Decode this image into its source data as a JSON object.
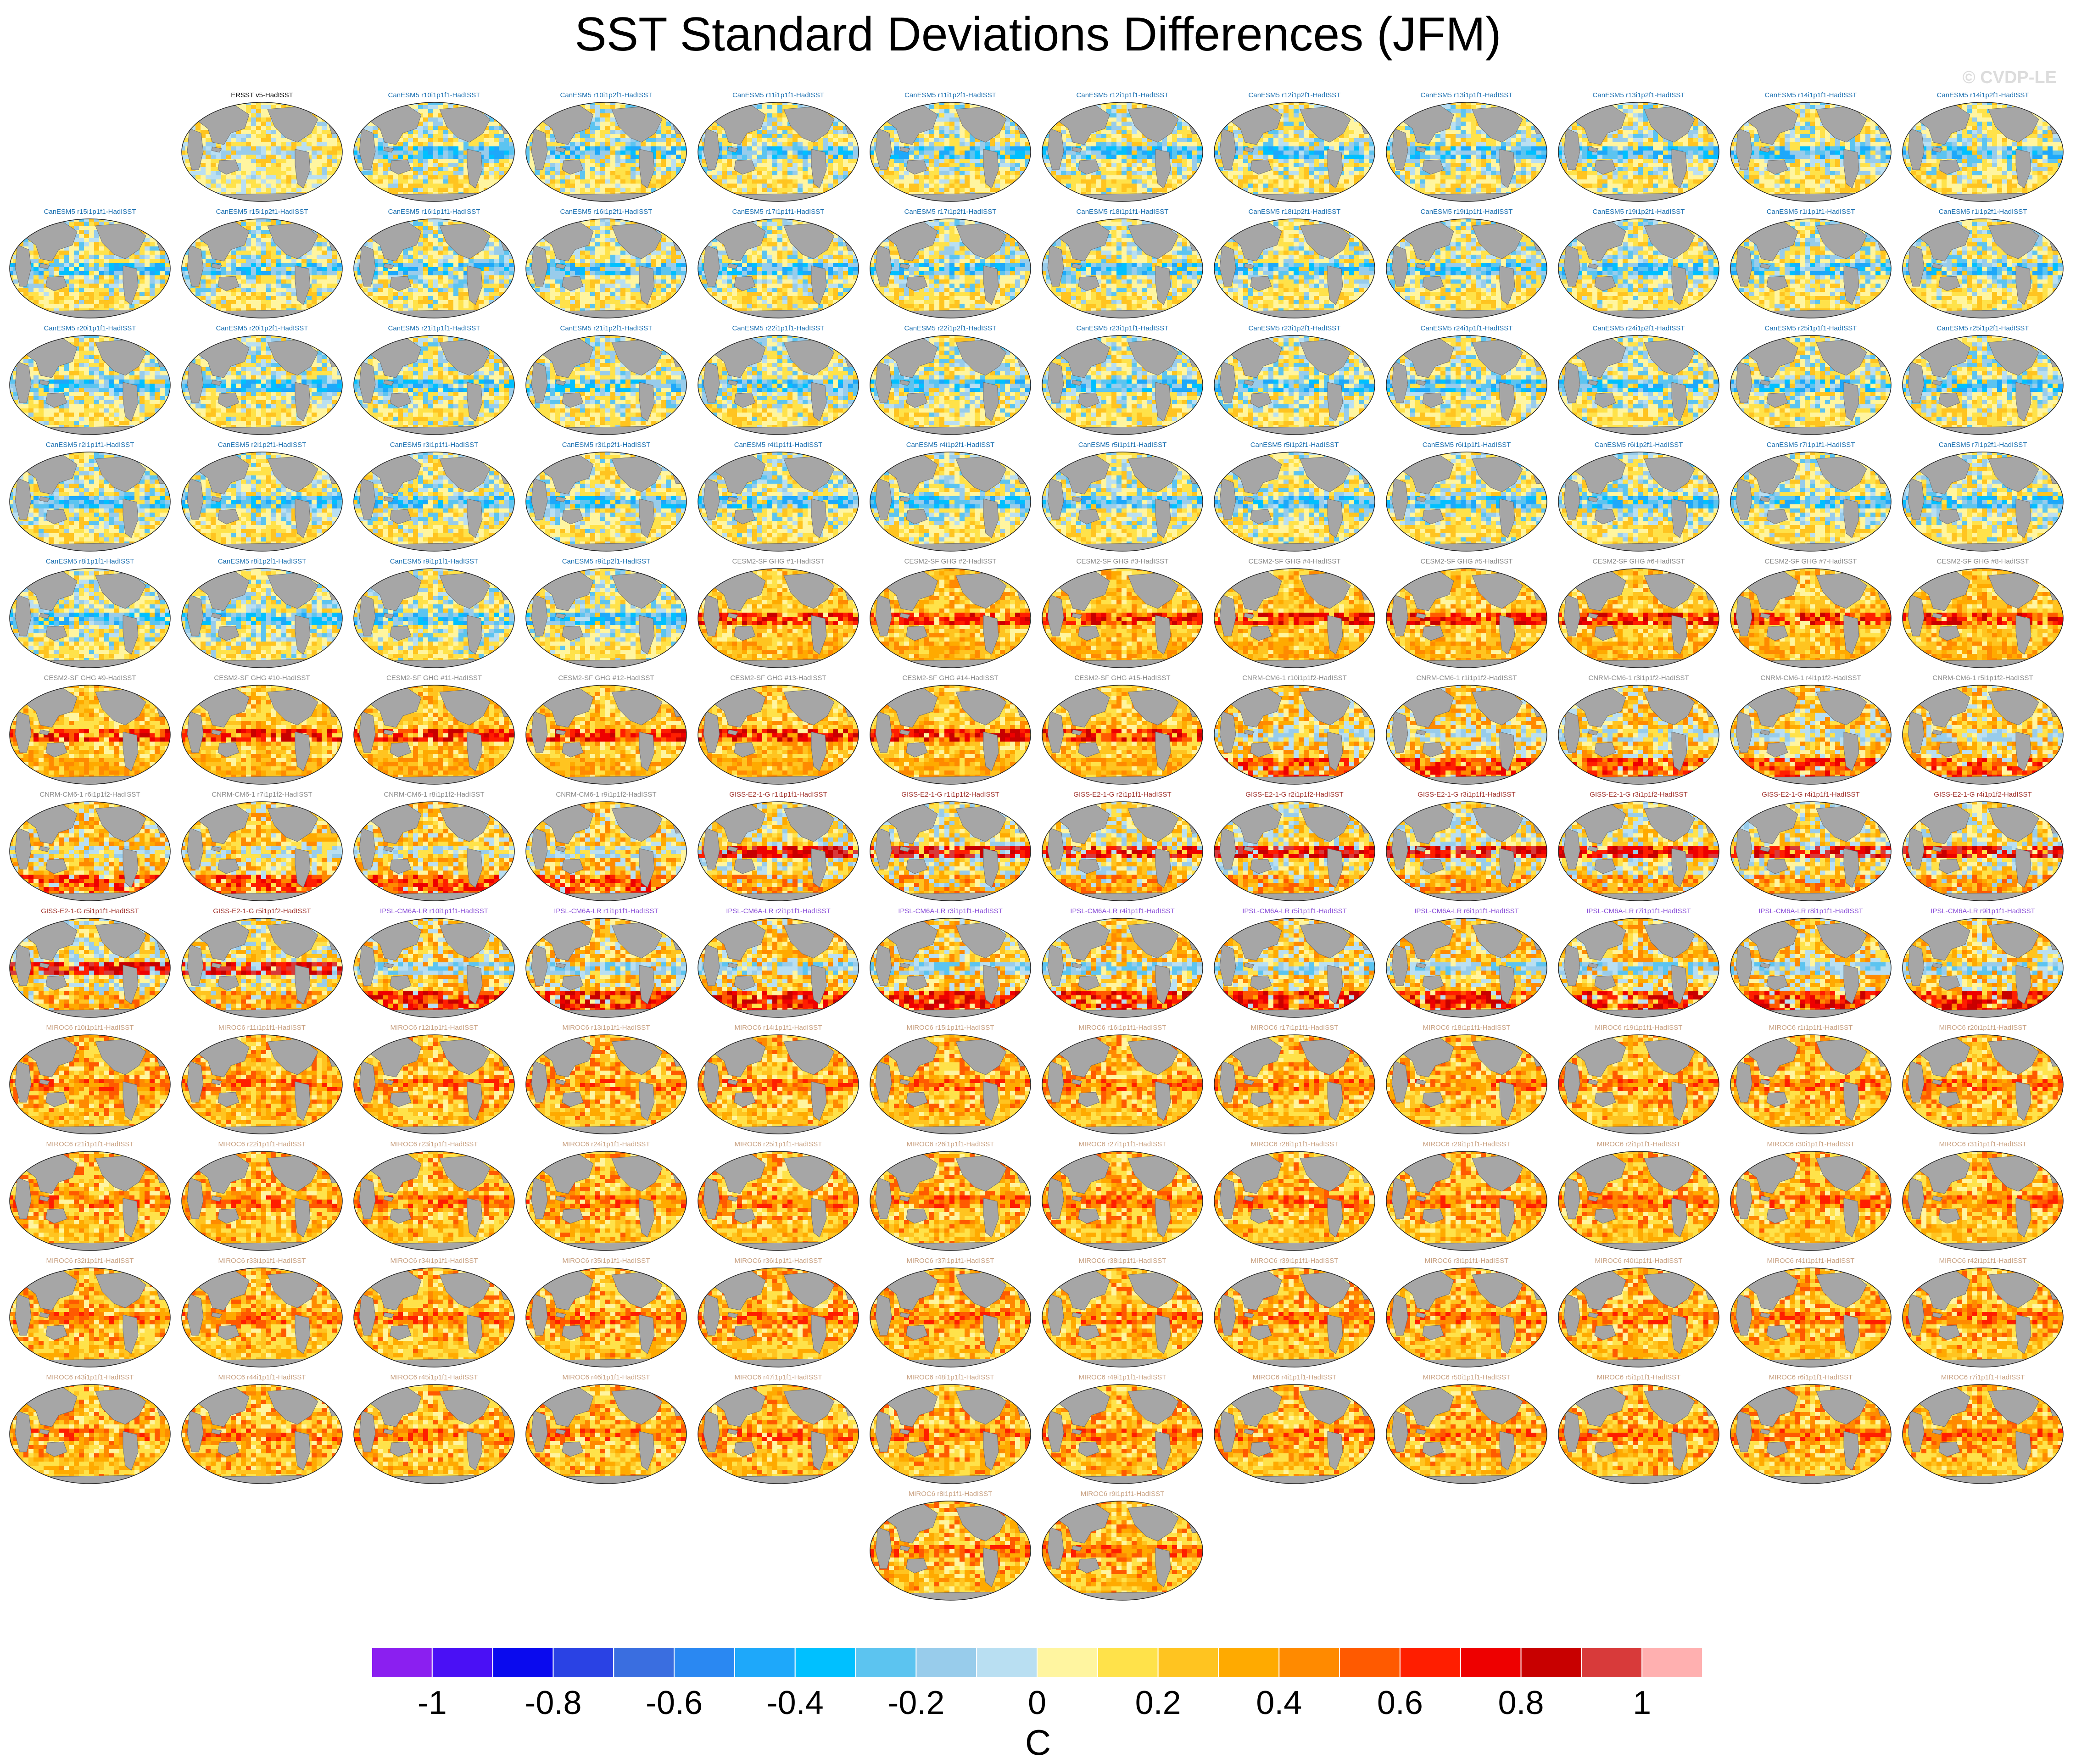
{
  "title": "SST Standard Deviations Differences (JFM)",
  "watermark": "© CVDP-LE",
  "units": "C",
  "colorbar": {
    "colors": [
      "#8b1ff0",
      "#4a10f5",
      "#0a0aee",
      "#2a42e4",
      "#3a6ee0",
      "#2a88f2",
      "#1ea8fa",
      "#00c0ff",
      "#5cc4f0",
      "#98cceb",
      "#b9dff2",
      "#fff5a0",
      "#ffe24a",
      "#ffc420",
      "#ffaa00",
      "#ff8a00",
      "#ff5a00",
      "#ff1e00",
      "#ee0000",
      "#c80000",
      "#d83a3a",
      "#ffb0b0"
    ],
    "tick_labels": [
      "-1",
      "-0.8",
      "-0.6",
      "-0.4",
      "-0.2",
      "0",
      "0.2",
      "0.4",
      "0.6",
      "0.8",
      "1"
    ]
  },
  "panels": [
    {
      "label": "ERSST v5-HadISST",
      "color": "#000000",
      "style": "obs"
    },
    {
      "label": "CanESM5 r10i1p1f1-HadISST",
      "color": "#1a6fb0",
      "style": "can"
    },
    {
      "label": "CanESM5 r10i1p2f1-HadISST",
      "color": "#1a6fb0",
      "style": "can"
    },
    {
      "label": "CanESM5 r11i1p1f1-HadISST",
      "color": "#1a6fb0",
      "style": "can"
    },
    {
      "label": "CanESM5 r11i1p2f1-HadISST",
      "color": "#1a6fb0",
      "style": "can"
    },
    {
      "label": "CanESM5 r12i1p1f1-HadISST",
      "color": "#1a6fb0",
      "style": "can"
    },
    {
      "label": "CanESM5 r12i1p2f1-HadISST",
      "color": "#1a6fb0",
      "style": "can"
    },
    {
      "label": "CanESM5 r13i1p1f1-HadISST",
      "color": "#1a6fb0",
      "style": "can"
    },
    {
      "label": "CanESM5 r13i1p2f1-HadISST",
      "color": "#1a6fb0",
      "style": "can"
    },
    {
      "label": "CanESM5 r14i1p1f1-HadISST",
      "color": "#1a6fb0",
      "style": "can"
    },
    {
      "label": "CanESM5 r14i1p2f1-HadISST",
      "color": "#1a6fb0",
      "style": "can"
    },
    {
      "label": "CanESM5 r15i1p1f1-HadISST",
      "color": "#1a6fb0",
      "style": "can"
    },
    {
      "label": "CanESM5 r15i1p2f1-HadISST",
      "color": "#1a6fb0",
      "style": "can"
    },
    {
      "label": "CanESM5 r16i1p1f1-HadISST",
      "color": "#1a6fb0",
      "style": "can"
    },
    {
      "label": "CanESM5 r16i1p2f1-HadISST",
      "color": "#1a6fb0",
      "style": "can"
    },
    {
      "label": "CanESM5 r17i1p1f1-HadISST",
      "color": "#1a6fb0",
      "style": "can"
    },
    {
      "label": "CanESM5 r17i1p2f1-HadISST",
      "color": "#1a6fb0",
      "style": "can"
    },
    {
      "label": "CanESM5 r18i1p1f1-HadISST",
      "color": "#1a6fb0",
      "style": "can"
    },
    {
      "label": "CanESM5 r18i1p2f1-HadISST",
      "color": "#1a6fb0",
      "style": "can"
    },
    {
      "label": "CanESM5 r19i1p1f1-HadISST",
      "color": "#1a6fb0",
      "style": "can"
    },
    {
      "label": "CanESM5 r19i1p2f1-HadISST",
      "color": "#1a6fb0",
      "style": "can"
    },
    {
      "label": "CanESM5 r1i1p1f1-HadISST",
      "color": "#1a6fb0",
      "style": "can"
    },
    {
      "label": "CanESM5 r1i1p2f1-HadISST",
      "color": "#1a6fb0",
      "style": "can"
    },
    {
      "label": "CanESM5 r20i1p1f1-HadISST",
      "color": "#1a6fb0",
      "style": "can"
    },
    {
      "label": "CanESM5 r20i1p2f1-HadISST",
      "color": "#1a6fb0",
      "style": "can"
    },
    {
      "label": "CanESM5 r21i1p1f1-HadISST",
      "color": "#1a6fb0",
      "style": "can"
    },
    {
      "label": "CanESM5 r21i1p2f1-HadISST",
      "color": "#1a6fb0",
      "style": "can"
    },
    {
      "label": "CanESM5 r22i1p1f1-HadISST",
      "color": "#1a6fb0",
      "style": "can"
    },
    {
      "label": "CanESM5 r22i1p2f1-HadISST",
      "color": "#1a6fb0",
      "style": "can"
    },
    {
      "label": "CanESM5 r23i1p1f1-HadISST",
      "color": "#1a6fb0",
      "style": "can"
    },
    {
      "label": "CanESM5 r23i1p2f1-HadISST",
      "color": "#1a6fb0",
      "style": "can"
    },
    {
      "label": "CanESM5 r24i1p1f1-HadISST",
      "color": "#1a6fb0",
      "style": "can"
    },
    {
      "label": "CanESM5 r24i1p2f1-HadISST",
      "color": "#1a6fb0",
      "style": "can"
    },
    {
      "label": "CanESM5 r25i1p1f1-HadISST",
      "color": "#1a6fb0",
      "style": "can"
    },
    {
      "label": "CanESM5 r25i1p2f1-HadISST",
      "color": "#1a6fb0",
      "style": "can"
    },
    {
      "label": "CanESM5 r2i1p1f1-HadISST",
      "color": "#1a6fb0",
      "style": "can"
    },
    {
      "label": "CanESM5 r2i1p2f1-HadISST",
      "color": "#1a6fb0",
      "style": "can"
    },
    {
      "label": "CanESM5 r3i1p1f1-HadISST",
      "color": "#1a6fb0",
      "style": "can"
    },
    {
      "label": "CanESM5 r3i1p2f1-HadISST",
      "color": "#1a6fb0",
      "style": "can"
    },
    {
      "label": "CanESM5 r4i1p1f1-HadISST",
      "color": "#1a6fb0",
      "style": "can"
    },
    {
      "label": "CanESM5 r4i1p2f1-HadISST",
      "color": "#1a6fb0",
      "style": "can"
    },
    {
      "label": "CanESM5 r5i1p1f1-HadISST",
      "color": "#1a6fb0",
      "style": "can"
    },
    {
      "label": "CanESM5 r5i1p2f1-HadISST",
      "color": "#1a6fb0",
      "style": "can"
    },
    {
      "label": "CanESM5 r6i1p1f1-HadISST",
      "color": "#1a6fb0",
      "style": "can"
    },
    {
      "label": "CanESM5 r6i1p2f1-HadISST",
      "color": "#1a6fb0",
      "style": "can"
    },
    {
      "label": "CanESM5 r7i1p1f1-HadISST",
      "color": "#1a6fb0",
      "style": "can"
    },
    {
      "label": "CanESM5 r7i1p2f1-HadISST",
      "color": "#1a6fb0",
      "style": "can"
    },
    {
      "label": "CanESM5 r8i1p1f1-HadISST",
      "color": "#1a6fb0",
      "style": "can"
    },
    {
      "label": "CanESM5 r8i1p2f1-HadISST",
      "color": "#1a6fb0",
      "style": "can"
    },
    {
      "label": "CanESM5 r9i1p1f1-HadISST",
      "color": "#1a6fb0",
      "style": "can"
    },
    {
      "label": "CanESM5 r9i1p2f1-HadISST",
      "color": "#1a6fb0",
      "style": "can"
    },
    {
      "label": "CESM2-SF GHG #1-HadISST",
      "color": "#8a8a8a",
      "style": "cesm"
    },
    {
      "label": "CESM2-SF GHG #2-HadISST",
      "color": "#8a8a8a",
      "style": "cesm"
    },
    {
      "label": "CESM2-SF GHG #3-HadISST",
      "color": "#8a8a8a",
      "style": "cesm"
    },
    {
      "label": "CESM2-SF GHG #4-HadISST",
      "color": "#8a8a8a",
      "style": "cesm"
    },
    {
      "label": "CESM2-SF GHG #5-HadISST",
      "color": "#8a8a8a",
      "style": "cesm"
    },
    {
      "label": "CESM2-SF GHG #6-HadISST",
      "color": "#8a8a8a",
      "style": "cesm"
    },
    {
      "label": "CESM2-SF GHG #7-HadISST",
      "color": "#8a8a8a",
      "style": "cesm"
    },
    {
      "label": "CESM2-SF GHG #8-HadISST",
      "color": "#8a8a8a",
      "style": "cesm"
    },
    {
      "label": "CESM2-SF GHG #9-HadISST",
      "color": "#8a8a8a",
      "style": "cesm"
    },
    {
      "label": "CESM2-SF GHG #10-HadISST",
      "color": "#8a8a8a",
      "style": "cesm"
    },
    {
      "label": "CESM2-SF GHG #11-HadISST",
      "color": "#8a8a8a",
      "style": "cesm"
    },
    {
      "label": "CESM2-SF GHG #12-HadISST",
      "color": "#8a8a8a",
      "style": "cesm"
    },
    {
      "label": "CESM2-SF GHG #13-HadISST",
      "color": "#8a8a8a",
      "style": "cesm"
    },
    {
      "label": "CESM2-SF GHG #14-HadISST",
      "color": "#8a8a8a",
      "style": "cesm"
    },
    {
      "label": "CESM2-SF GHG #15-HadISST",
      "color": "#8a8a8a",
      "style": "cesm"
    },
    {
      "label": "CNRM-CM6-1 r10i1p1f2-HadISST",
      "color": "#8a8a8a",
      "style": "cnrm"
    },
    {
      "label": "CNRM-CM6-1 r1i1p1f2-HadISST",
      "color": "#8a8a8a",
      "style": "cnrm"
    },
    {
      "label": "CNRM-CM6-1 r3i1p1f2-HadISST",
      "color": "#8a8a8a",
      "style": "cnrm"
    },
    {
      "label": "CNRM-CM6-1 r4i1p1f2-HadISST",
      "color": "#8a8a8a",
      "style": "cnrm"
    },
    {
      "label": "CNRM-CM6-1 r5i1p1f2-HadISST",
      "color": "#8a8a8a",
      "style": "cnrm"
    },
    {
      "label": "CNRM-CM6-1 r6i1p1f2-HadISST",
      "color": "#8a8a8a",
      "style": "cnrm"
    },
    {
      "label": "CNRM-CM6-1 r7i1p1f2-HadISST",
      "color": "#8a8a8a",
      "style": "cnrm"
    },
    {
      "label": "CNRM-CM6-1 r8i1p1f2-HadISST",
      "color": "#8a8a8a",
      "style": "cnrm"
    },
    {
      "label": "CNRM-CM6-1 r9i1p1f2-HadISST",
      "color": "#8a8a8a",
      "style": "cnrm"
    },
    {
      "label": "GISS-E2-1-G r1i1p1f1-HadISST",
      "color": "#a0322c",
      "style": "giss"
    },
    {
      "label": "GISS-E2-1-G r1i1p1f2-HadISST",
      "color": "#a0322c",
      "style": "giss"
    },
    {
      "label": "GISS-E2-1-G r2i1p1f1-HadISST",
      "color": "#a0322c",
      "style": "giss"
    },
    {
      "label": "GISS-E2-1-G r2i1p1f2-HadISST",
      "color": "#a0322c",
      "style": "giss"
    },
    {
      "label": "GISS-E2-1-G r3i1p1f1-HadISST",
      "color": "#a0322c",
      "style": "giss"
    },
    {
      "label": "GISS-E2-1-G r3i1p1f2-HadISST",
      "color": "#a0322c",
      "style": "giss"
    },
    {
      "label": "GISS-E2-1-G r4i1p1f1-HadISST",
      "color": "#a0322c",
      "style": "giss"
    },
    {
      "label": "GISS-E2-1-G r4i1p1f2-HadISST",
      "color": "#a0322c",
      "style": "giss"
    },
    {
      "label": "GISS-E2-1-G r5i1p1f1-HadISST",
      "color": "#a0322c",
      "style": "giss"
    },
    {
      "label": "GISS-E2-1-G r5i1p1f2-HadISST",
      "color": "#a0322c",
      "style": "giss"
    },
    {
      "label": "IPSL-CM6A-LR r10i1p1f1-HadISST",
      "color": "#8a4fd8",
      "style": "ipsl"
    },
    {
      "label": "IPSL-CM6A-LR r1i1p1f1-HadISST",
      "color": "#8a4fd8",
      "style": "ipsl"
    },
    {
      "label": "IPSL-CM6A-LR r2i1p1f1-HadISST",
      "color": "#8a4fd8",
      "style": "ipsl"
    },
    {
      "label": "IPSL-CM6A-LR r3i1p1f1-HadISST",
      "color": "#8a4fd8",
      "style": "ipsl"
    },
    {
      "label": "IPSL-CM6A-LR r4i1p1f1-HadISST",
      "color": "#8a4fd8",
      "style": "ipsl"
    },
    {
      "label": "IPSL-CM6A-LR r5i1p1f1-HadISST",
      "color": "#8a4fd8",
      "style": "ipsl"
    },
    {
      "label": "IPSL-CM6A-LR r6i1p1f1-HadISST",
      "color": "#8a4fd8",
      "style": "ipsl"
    },
    {
      "label": "IPSL-CM6A-LR r7i1p1f1-HadISST",
      "color": "#8a4fd8",
      "style": "ipsl"
    },
    {
      "label": "IPSL-CM6A-LR r8i1p1f1-HadISST",
      "color": "#8a4fd8",
      "style": "ipsl"
    },
    {
      "label": "IPSL-CM6A-LR r9i1p1f1-HadISST",
      "color": "#8a4fd8",
      "style": "ipsl"
    },
    {
      "label": "MIROC6 r10i1p1f1-HadISST",
      "color": "#c8a080",
      "style": "miroc"
    },
    {
      "label": "MIROC6 r11i1p1f1-HadISST",
      "color": "#c8a080",
      "style": "miroc"
    },
    {
      "label": "MIROC6 r12i1p1f1-HadISST",
      "color": "#c8a080",
      "style": "miroc"
    },
    {
      "label": "MIROC6 r13i1p1f1-HadISST",
      "color": "#c8a080",
      "style": "miroc"
    },
    {
      "label": "MIROC6 r14i1p1f1-HadISST",
      "color": "#c8a080",
      "style": "miroc"
    },
    {
      "label": "MIROC6 r15i1p1f1-HadISST",
      "color": "#c8a080",
      "style": "miroc"
    },
    {
      "label": "MIROC6 r16i1p1f1-HadISST",
      "color": "#c8a080",
      "style": "miroc"
    },
    {
      "label": "MIROC6 r17i1p1f1-HadISST",
      "color": "#c8a080",
      "style": "miroc"
    },
    {
      "label": "MIROC6 r18i1p1f1-HadISST",
      "color": "#c8a080",
      "style": "miroc"
    },
    {
      "label": "MIROC6 r19i1p1f1-HadISST",
      "color": "#c8a080",
      "style": "miroc"
    },
    {
      "label": "MIROC6 r1i1p1f1-HadISST",
      "color": "#c8a080",
      "style": "miroc"
    },
    {
      "label": "MIROC6 r20i1p1f1-HadISST",
      "color": "#c8a080",
      "style": "miroc"
    },
    {
      "label": "MIROC6 r21i1p1f1-HadISST",
      "color": "#c8a080",
      "style": "miroc"
    },
    {
      "label": "MIROC6 r22i1p1f1-HadISST",
      "color": "#c8a080",
      "style": "miroc"
    },
    {
      "label": "MIROC6 r23i1p1f1-HadISST",
      "color": "#c8a080",
      "style": "miroc"
    },
    {
      "label": "MIROC6 r24i1p1f1-HadISST",
      "color": "#c8a080",
      "style": "miroc"
    },
    {
      "label": "MIROC6 r25i1p1f1-HadISST",
      "color": "#c8a080",
      "style": "miroc"
    },
    {
      "label": "MIROC6 r26i1p1f1-HadISST",
      "color": "#c8a080",
      "style": "miroc"
    },
    {
      "label": "MIROC6 r27i1p1f1-HadISST",
      "color": "#c8a080",
      "style": "miroc"
    },
    {
      "label": "MIROC6 r28i1p1f1-HadISST",
      "color": "#c8a080",
      "style": "miroc"
    },
    {
      "label": "MIROC6 r29i1p1f1-HadISST",
      "color": "#c8a080",
      "style": "miroc"
    },
    {
      "label": "MIROC6 r2i1p1f1-HadISST",
      "color": "#c8a080",
      "style": "miroc"
    },
    {
      "label": "MIROC6 r30i1p1f1-HadISST",
      "color": "#c8a080",
      "style": "miroc"
    },
    {
      "label": "MIROC6 r31i1p1f1-HadISST",
      "color": "#c8a080",
      "style": "miroc"
    },
    {
      "label": "MIROC6 r32i1p1f1-HadISST",
      "color": "#c8a080",
      "style": "miroc"
    },
    {
      "label": "MIROC6 r33i1p1f1-HadISST",
      "color": "#c8a080",
      "style": "miroc"
    },
    {
      "label": "MIROC6 r34i1p1f1-HadISST",
      "color": "#c8a080",
      "style": "miroc"
    },
    {
      "label": "MIROC6 r35i1p1f1-HadISST",
      "color": "#c8a080",
      "style": "miroc"
    },
    {
      "label": "MIROC6 r36i1p1f1-HadISST",
      "color": "#c8a080",
      "style": "miroc"
    },
    {
      "label": "MIROC6 r37i1p1f1-HadISST",
      "color": "#c8a080",
      "style": "miroc"
    },
    {
      "label": "MIROC6 r38i1p1f1-HadISST",
      "color": "#c8a080",
      "style": "miroc"
    },
    {
      "label": "MIROC6 r39i1p1f1-HadISST",
      "color": "#c8a080",
      "style": "miroc"
    },
    {
      "label": "MIROC6 r3i1p1f1-HadISST",
      "color": "#c8a080",
      "style": "miroc"
    },
    {
      "label": "MIROC6 r40i1p1f1-HadISST",
      "color": "#c8a080",
      "style": "miroc"
    },
    {
      "label": "MIROC6 r41i1p1f1-HadISST",
      "color": "#c8a080",
      "style": "miroc"
    },
    {
      "label": "MIROC6 r42i1p1f1-HadISST",
      "color": "#c8a080",
      "style": "miroc"
    },
    {
      "label": "MIROC6 r43i1p1f1-HadISST",
      "color": "#c8a080",
      "style": "miroc"
    },
    {
      "label": "MIROC6 r44i1p1f1-HadISST",
      "color": "#c8a080",
      "style": "miroc"
    },
    {
      "label": "MIROC6 r45i1p1f1-HadISST",
      "color": "#c8a080",
      "style": "miroc"
    },
    {
      "label": "MIROC6 r46i1p1f1-HadISST",
      "color": "#c8a080",
      "style": "miroc"
    },
    {
      "label": "MIROC6 r47i1p1f1-HadISST",
      "color": "#c8a080",
      "style": "miroc"
    },
    {
      "label": "MIROC6 r48i1p1f1-HadISST",
      "color": "#c8a080",
      "style": "miroc"
    },
    {
      "label": "MIROC6 r49i1p1f1-HadISST",
      "color": "#c8a080",
      "style": "miroc"
    },
    {
      "label": "MIROC6 r4i1p1f1-HadISST",
      "color": "#c8a080",
      "style": "miroc"
    },
    {
      "label": "MIROC6 r50i1p1f1-HadISST",
      "color": "#c8a080",
      "style": "miroc"
    },
    {
      "label": "MIROC6 r5i1p1f1-HadISST",
      "color": "#c8a080",
      "style": "miroc"
    },
    {
      "label": "MIROC6 r6i1p1f1-HadISST",
      "color": "#c8a080",
      "style": "miroc"
    },
    {
      "label": "MIROC6 r7i1p1f1-HadISST",
      "color": "#c8a080",
      "style": "miroc"
    },
    {
      "label": "MIROC6 r8i1p1f1-HadISST",
      "color": "#c8a080",
      "style": "miroc"
    },
    {
      "label": "MIROC6 r9i1p1f1-HadISST",
      "color": "#c8a080",
      "style": "miroc"
    }
  ]
}
